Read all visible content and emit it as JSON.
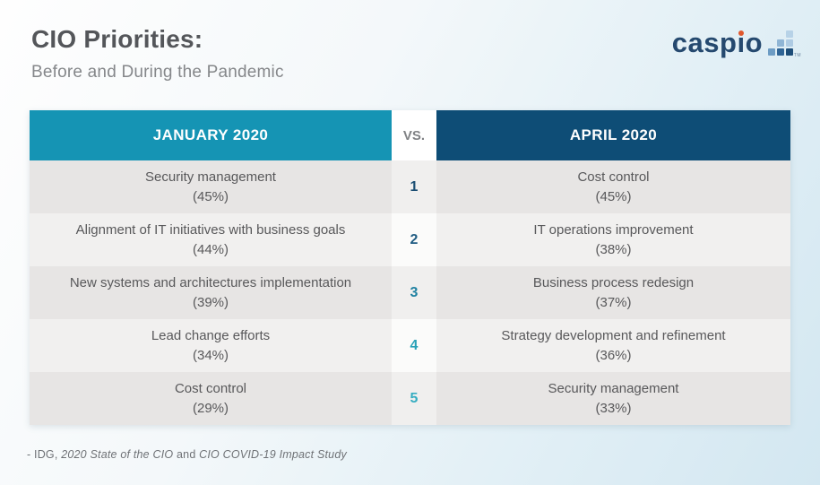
{
  "page": {
    "title": "CIO Priorities:",
    "subtitle": "Before and During the Pandemic",
    "source": {
      "prefix": "- IDG, ",
      "work1": "2020 State of the CIO",
      "conjunction": " and ",
      "work2": "CIO COVID-19 Impact Study"
    }
  },
  "logo": {
    "text": "caspio",
    "wordmark_parts": {
      "p1": "casp",
      "i": "ı",
      "p2": "o"
    },
    "tm": "TM",
    "colors": {
      "word": "#25496f",
      "dot": "#e0582e",
      "sq_a": "#b7d2e7",
      "sq_b": "#8fb5d5",
      "sq_c": "#aecbe3",
      "sq_d": "#6d9cc4",
      "sq_e": "#2f6495",
      "sq_f": "#1d4d78"
    }
  },
  "table": {
    "header": {
      "left": "JANUARY 2020",
      "vs": "VS.",
      "right": "APRIL 2020"
    },
    "header_colors": {
      "left_bg": "#1594b4",
      "right_bg": "#0e4d76",
      "vs_text": "#808285"
    },
    "rows": [
      {
        "rank": "1",
        "rank_color": "#1b4e73",
        "left_label": "Security management",
        "left_value": "(45%)",
        "right_label": "Cost control",
        "right_value": "(45%)"
      },
      {
        "rank": "2",
        "rank_color": "#205c82",
        "left_label": "Alignment of IT initiatives with business goals",
        "left_value": "(44%)",
        "right_label": "IT operations improvement",
        "right_value": "(38%)"
      },
      {
        "rank": "3",
        "rank_color": "#1f81a1",
        "left_label": "New systems and architectures implementation",
        "left_value": "(39%)",
        "right_label": "Business process redesign",
        "right_value": "(37%)"
      },
      {
        "rank": "4",
        "rank_color": "#27a1b7",
        "left_label": "Lead change efforts",
        "left_value": "(34%)",
        "right_label": "Strategy development and refinement",
        "right_value": "(36%)"
      },
      {
        "rank": "5",
        "rank_color": "#35adc1",
        "left_label": "Cost control",
        "left_value": "(29%)",
        "right_label": "Security management",
        "right_value": "(33%)"
      }
    ]
  },
  "chart_data": {
    "type": "table",
    "title": "CIO Priorities: Before and During the Pandemic",
    "columns": [
      "JANUARY 2020",
      "VS.",
      "APRIL 2020"
    ],
    "rows": [
      {
        "rank": 1,
        "january_2020": "Security management",
        "january_pct": 45,
        "april_2020": "Cost control",
        "april_pct": 45
      },
      {
        "rank": 2,
        "january_2020": "Alignment of IT initiatives with business goals",
        "january_pct": 44,
        "april_2020": "IT operations improvement",
        "april_pct": 38
      },
      {
        "rank": 3,
        "january_2020": "New systems and architectures implementation",
        "january_pct": 39,
        "april_2020": "Business process redesign",
        "april_pct": 37
      },
      {
        "rank": 4,
        "january_2020": "Lead change efforts",
        "january_pct": 34,
        "april_2020": "Strategy development and refinement",
        "april_pct": 36
      },
      {
        "rank": 5,
        "january_2020": "Cost control",
        "january_pct": 29,
        "april_2020": "Security management",
        "april_pct": 33
      }
    ],
    "source": "- IDG, 2020 State of the CIO and CIO COVID-19 Impact Study"
  }
}
